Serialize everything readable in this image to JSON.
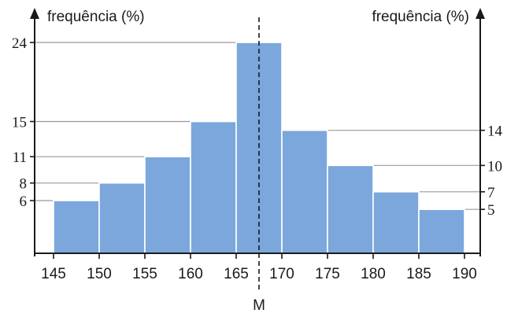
{
  "chart_data": {
    "type": "bar",
    "bin_edges": [
      145,
      150,
      155,
      160,
      165,
      170,
      175,
      180,
      185,
      190
    ],
    "values": [
      6,
      8,
      11,
      15,
      24,
      14,
      10,
      7,
      5
    ],
    "left_ylabel": "frequência (%)",
    "right_ylabel": "frequência (%)",
    "left_yticks": [
      6,
      8,
      11,
      15,
      24
    ],
    "right_yticks": [
      5,
      7,
      10,
      14
    ],
    "xticks": [
      145,
      150,
      155,
      160,
      165,
      170,
      175,
      180,
      185,
      190
    ],
    "xlim": [
      145,
      190
    ],
    "ylim": [
      0,
      27
    ],
    "median_label": "M",
    "median_value": 167.5,
    "colors": {
      "bar": "#7ba7dc",
      "bar_edge": "#ffffff",
      "axis": "#1a1a1a",
      "grid": "#9a9a9a"
    }
  }
}
